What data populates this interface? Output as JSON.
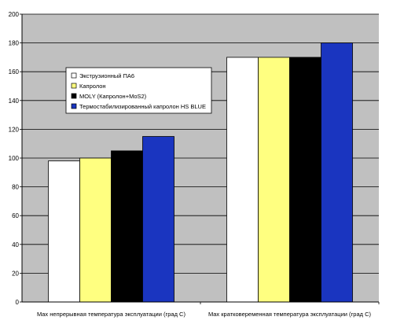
{
  "chart_data": {
    "type": "bar",
    "categories": [
      "Max непрерывная температура эксплуатации (град С)",
      "Max кратковеременная температура эксплуатации (град С)"
    ],
    "series": [
      {
        "name": "Экструзионный ПА6",
        "color": "#ffffff",
        "values": [
          98,
          170
        ]
      },
      {
        "name": "Капролон",
        "color": "#ffff80",
        "values": [
          100,
          170
        ]
      },
      {
        "name": "MOLY (Капролон+MoS2)",
        "color": "#000000",
        "values": [
          105,
          170
        ]
      },
      {
        "name": "Термостабилизированный капролон HS BLUE",
        "color": "#1a35c0",
        "values": [
          115,
          180
        ]
      }
    ],
    "ylim": [
      0,
      200
    ],
    "yticks": [
      0,
      20,
      40,
      60,
      80,
      100,
      120,
      140,
      160,
      180,
      200
    ],
    "plot_background": "#c0c0c0",
    "grid": true,
    "legend_position": "upper-left"
  }
}
